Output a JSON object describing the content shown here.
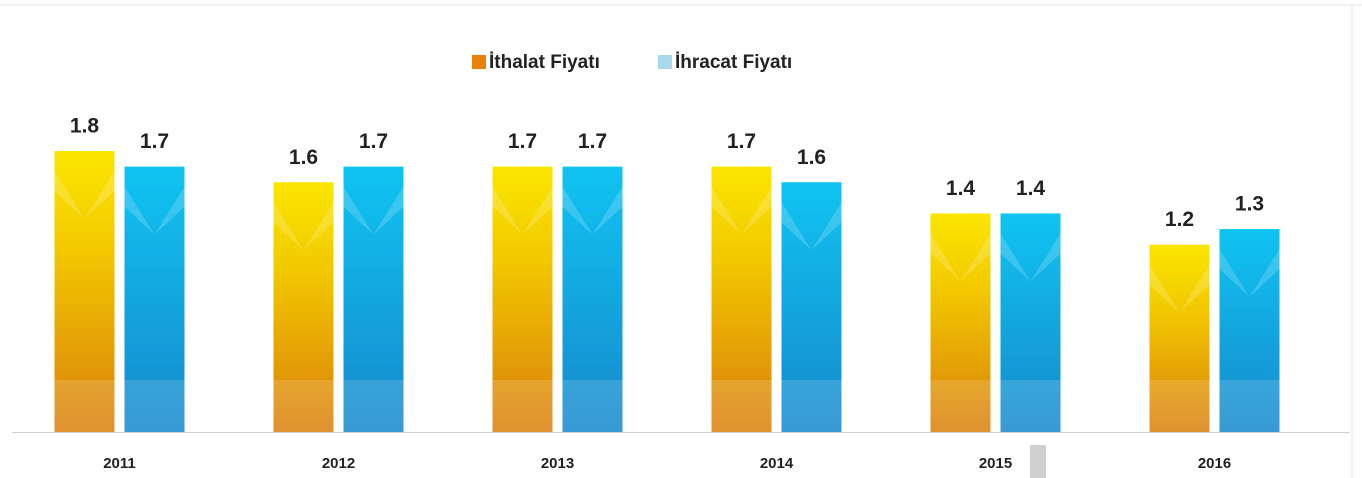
{
  "chart_data": {
    "type": "bar",
    "categories": [
      "2011",
      "2012",
      "2013",
      "2014",
      "2015",
      "2016"
    ],
    "series": [
      {
        "name": "İthalat Fiyatı",
        "color": "#e8820a",
        "values": [
          1.8,
          1.6,
          1.7,
          1.7,
          1.4,
          1.2
        ]
      },
      {
        "name": "İhracat Fiyatı",
        "color": "#a8d8ea",
        "values": [
          1.7,
          1.7,
          1.7,
          1.6,
          1.4,
          1.3
        ]
      }
    ]
  }
}
